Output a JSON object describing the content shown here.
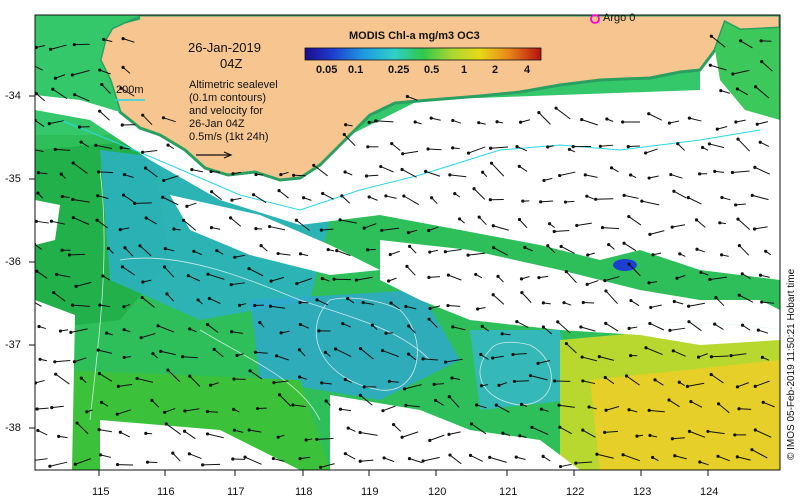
{
  "colors": {
    "land": "#f7c690",
    "coast_line": "#2ad7e6",
    "cloud": "#ffffff",
    "argo_marker": "#ff00d7"
  },
  "date_line1": "26-Jan-2019",
  "date_line2": "04Z",
  "depth_contour_label": "200m",
  "description_lines": [
    "Altimetric sealevel",
    "(0.1m contours)",
    "and velocity for",
    "26-Jan 04Z",
    "0.5m/s (1kt 24h)"
  ],
  "argo_label": "Argo 0",
  "colorbar": {
    "title": "MODIS Chl-a mg/m3 OC3",
    "ticks": [
      "0.05",
      "0.1",
      "0.25",
      "0.5",
      "1",
      "2",
      "4"
    ]
  },
  "y_axis_labels": [
    "-34",
    "-35",
    "-36",
    "-37",
    "-38"
  ],
  "x_axis_labels": [
    "115",
    "116",
    "117",
    "118",
    "119",
    "120",
    "121",
    "122",
    "123",
    "124"
  ],
  "credit_text": "© IMOS 05-Feb-2019 11:50:21 Hobart time"
}
